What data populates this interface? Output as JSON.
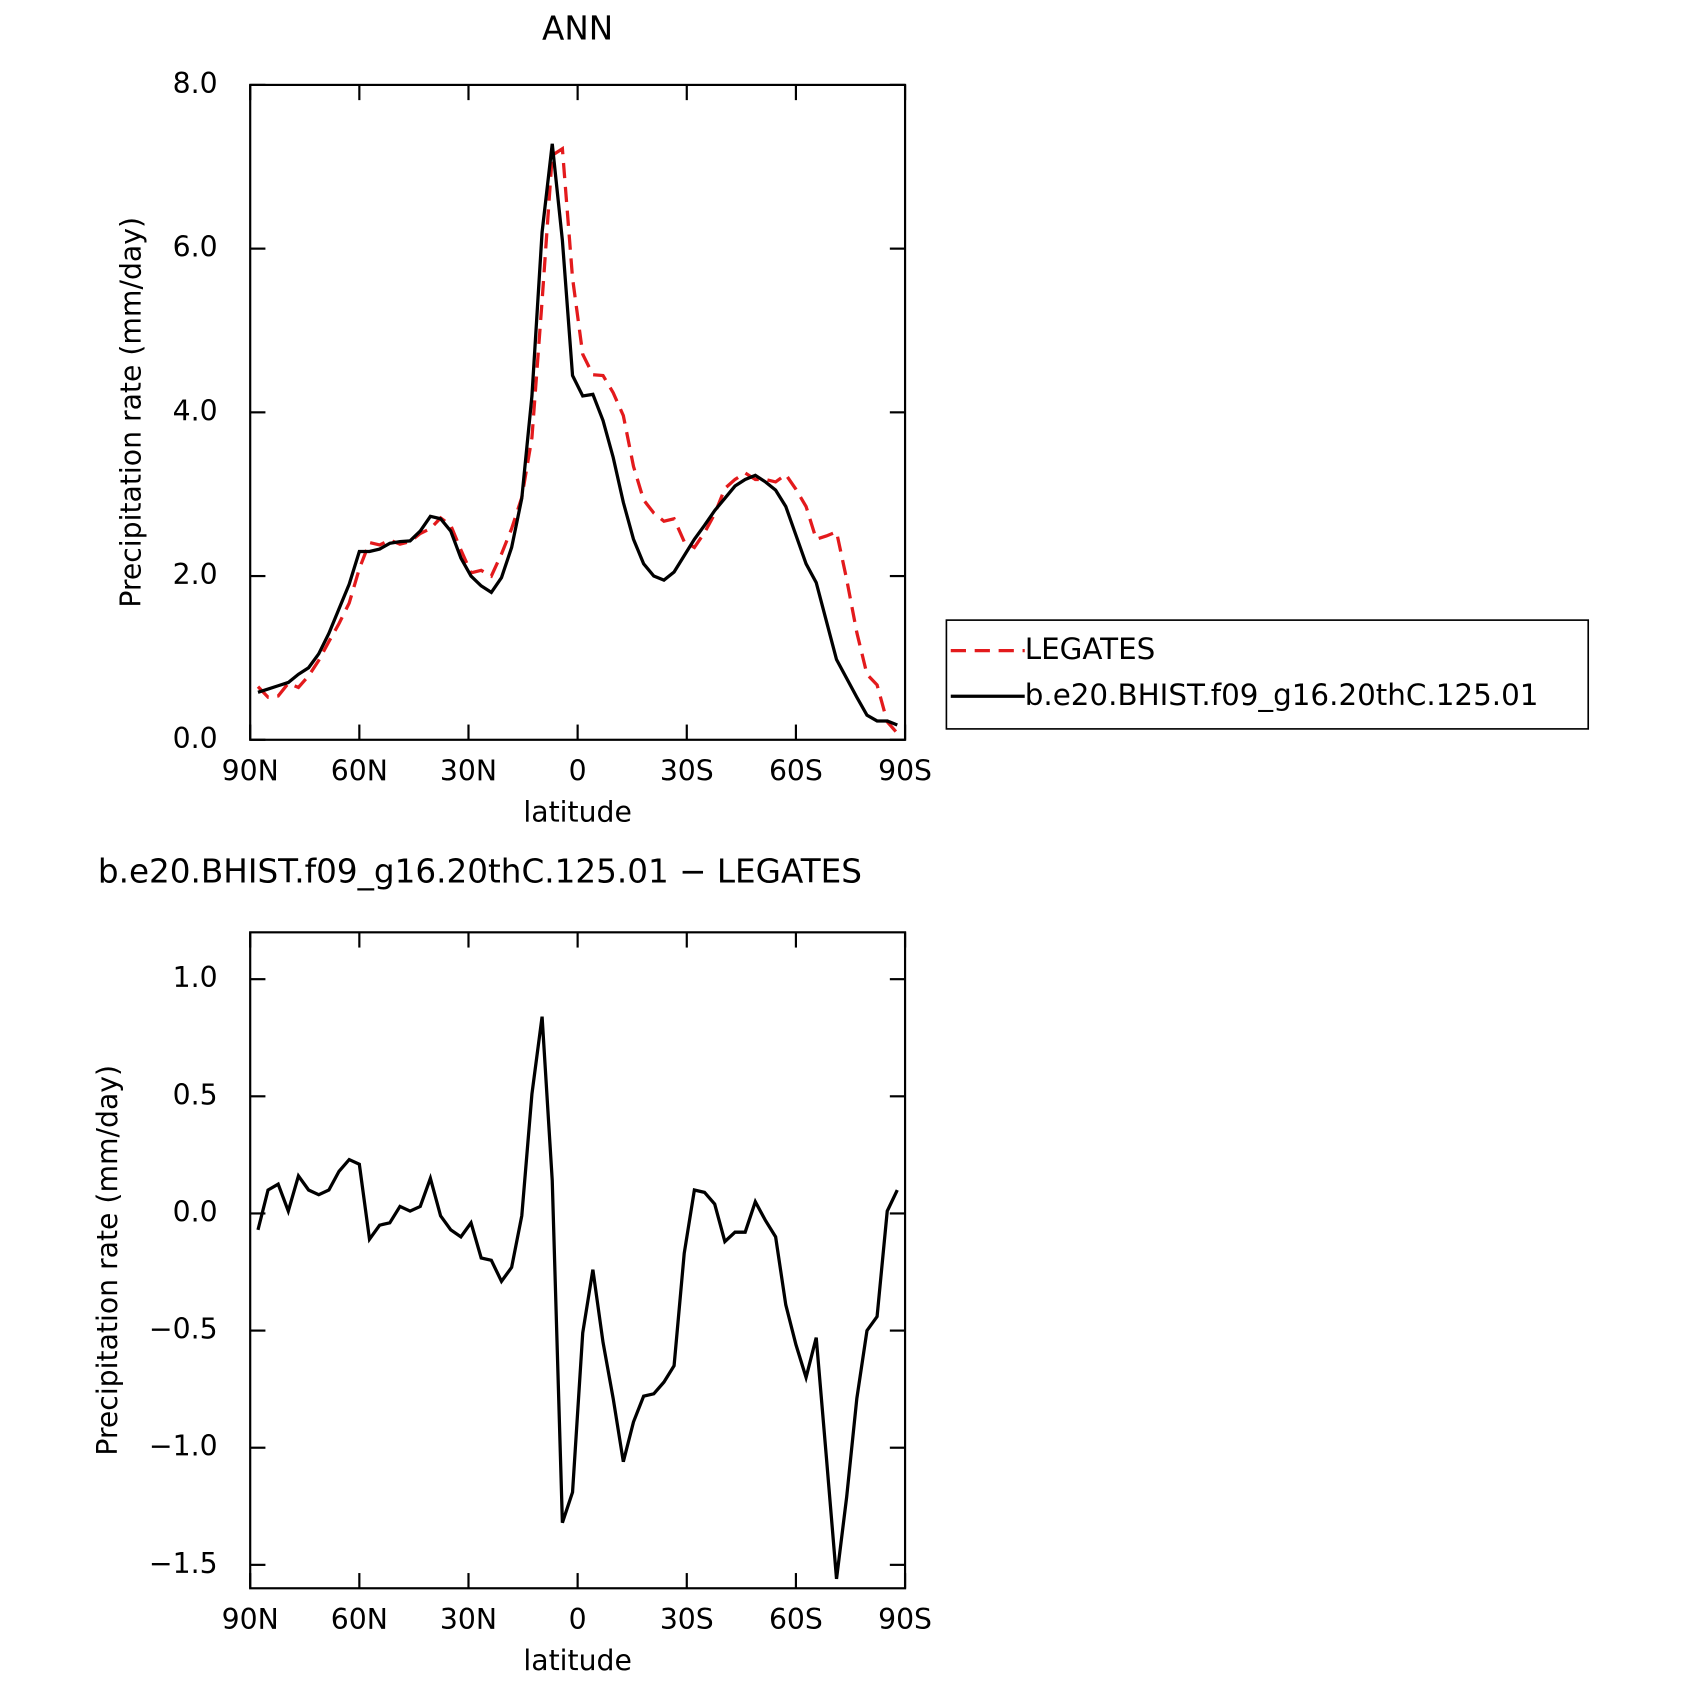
{
  "chart_data": [
    {
      "type": "line",
      "title": "ANN",
      "xlabel": "latitude",
      "ylabel": "Precipitation rate (mm/day)",
      "x": [
        87.86,
        85.1,
        82.31,
        79.53,
        76.74,
        73.95,
        71.16,
        68.37,
        65.58,
        62.79,
        60.0,
        57.21,
        54.42,
        51.63,
        48.84,
        46.05,
        43.26,
        40.47,
        37.67,
        34.88,
        32.09,
        29.3,
        26.51,
        23.72,
        20.93,
        18.14,
        15.35,
        12.56,
        9.77,
        6.98,
        4.19,
        1.4,
        -1.4,
        -4.19,
        -6.98,
        -9.77,
        -12.56,
        -15.35,
        -18.14,
        -20.93,
        -23.72,
        -26.51,
        -29.3,
        -32.09,
        -34.88,
        -37.67,
        -40.47,
        -43.26,
        -46.05,
        -48.84,
        -51.63,
        -54.42,
        -57.21,
        -60.0,
        -62.79,
        -65.58,
        -68.37,
        -71.16,
        -73.95,
        -76.74,
        -79.53,
        -82.31,
        -85.1,
        -87.86
      ],
      "xlim": [
        90,
        -90
      ],
      "xticks": [
        {
          "value": 90,
          "label": "90N"
        },
        {
          "value": 60,
          "label": "60N"
        },
        {
          "value": 30,
          "label": "30N"
        },
        0,
        {
          "value": -30,
          "label": "30S"
        },
        {
          "value": -60,
          "label": "60S"
        },
        {
          "value": -90,
          "label": "90S"
        }
      ],
      "ylim": [
        0,
        8
      ],
      "yticks": [
        {
          "value": 0,
          "label": "0.0"
        },
        {
          "value": 2,
          "label": "2.0"
        },
        {
          "value": 4,
          "label": "4.0"
        },
        {
          "value": 6,
          "label": "6.0"
        },
        {
          "value": 8,
          "label": "8.0"
        }
      ],
      "series": [
        {
          "name": "LEGATES",
          "color": "#e31a1c",
          "dash": true,
          "values": [
            0.65,
            0.52,
            0.535,
            0.69,
            0.64,
            0.78,
            0.97,
            1.2,
            1.42,
            1.67,
            2.09,
            2.41,
            2.38,
            2.44,
            2.39,
            2.42,
            2.52,
            2.58,
            2.71,
            2.62,
            2.32,
            2.04,
            2.07,
            2.0,
            2.27,
            2.58,
            2.96,
            3.69,
            5.36,
            7.14,
            7.22,
            5.64,
            4.71,
            4.46,
            4.45,
            4.24,
            3.96,
            3.34,
            2.93,
            2.77,
            2.67,
            2.7,
            2.42,
            2.35,
            2.53,
            2.76,
            3.07,
            3.18,
            3.26,
            3.18,
            3.18,
            3.15,
            3.24,
            3.06,
            2.85,
            2.45,
            2.49,
            2.54,
            1.96,
            1.31,
            0.8,
            0.67,
            0.22,
            0.08
          ]
        },
        {
          "name": "b.e20.BHIST.f09_g16.20thC.125.01",
          "color": "#000000",
          "dash": false,
          "values": [
            0.58,
            0.62,
            0.66,
            0.7,
            0.8,
            0.88,
            1.05,
            1.3,
            1.6,
            1.9,
            2.3,
            2.3,
            2.33,
            2.4,
            2.42,
            2.43,
            2.55,
            2.73,
            2.7,
            2.55,
            2.22,
            2.0,
            1.88,
            1.8,
            1.98,
            2.35,
            2.95,
            4.2,
            6.2,
            7.28,
            6.1,
            4.45,
            4.2,
            4.22,
            3.9,
            3.45,
            2.9,
            2.45,
            2.15,
            2.0,
            1.95,
            2.05,
            2.25,
            2.45,
            2.62,
            2.8,
            2.95,
            3.1,
            3.18,
            3.23,
            3.15,
            3.05,
            2.85,
            2.5,
            2.15,
            1.92,
            1.45,
            0.98,
            0.75,
            0.52,
            0.3,
            0.23,
            0.23,
            0.18
          ]
        }
      ]
    },
    {
      "type": "line",
      "title": "b.e20.BHIST.f09_g16.20thC.125.01 − LEGATES",
      "xlabel": "latitude",
      "ylabel": "Precipitation rate (mm/day)",
      "x": [
        87.86,
        85.1,
        82.31,
        79.53,
        76.74,
        73.95,
        71.16,
        68.37,
        65.58,
        62.79,
        60.0,
        57.21,
        54.42,
        51.63,
        48.84,
        46.05,
        43.26,
        40.47,
        37.67,
        34.88,
        32.09,
        29.3,
        26.51,
        23.72,
        20.93,
        18.14,
        15.35,
        12.56,
        9.77,
        6.98,
        4.19,
        1.4,
        -1.4,
        -4.19,
        -6.98,
        -9.77,
        -12.56,
        -15.35,
        -18.14,
        -20.93,
        -23.72,
        -26.51,
        -29.3,
        -32.09,
        -34.88,
        -37.67,
        -40.47,
        -43.26,
        -46.05,
        -48.84,
        -51.63,
        -54.42,
        -57.21,
        -60.0,
        -62.79,
        -65.58,
        -68.37,
        -71.16,
        -73.95,
        -76.74,
        -79.53,
        -82.31,
        -85.1,
        -87.86
      ],
      "xlim": [
        90,
        -90
      ],
      "xticks": [
        {
          "value": 90,
          "label": "90N"
        },
        {
          "value": 60,
          "label": "60N"
        },
        {
          "value": 30,
          "label": "30N"
        },
        0,
        {
          "value": -30,
          "label": "30S"
        },
        {
          "value": -60,
          "label": "60S"
        },
        {
          "value": -90,
          "label": "90S"
        }
      ],
      "ylim": [
        -1.6,
        1.2
      ],
      "yticks": [
        {
          "value": 1,
          "label": "1.0"
        },
        0.5,
        {
          "value": 0,
          "label": "0.0"
        },
        {
          "value": -0.5,
          "label": "−0.5"
        },
        {
          "value": -1,
          "label": "−1.0"
        },
        {
          "value": -1.5,
          "label": "−1.5"
        }
      ],
      "color": "#000000",
      "values": [
        -0.07,
        0.1,
        0.125,
        0.01,
        0.16,
        0.1,
        0.08,
        0.1,
        0.18,
        0.23,
        0.21,
        -0.11,
        -0.05,
        -0.04,
        0.03,
        0.01,
        0.03,
        0.15,
        -0.01,
        -0.07,
        -0.1,
        -0.04,
        -0.19,
        -0.2,
        -0.29,
        -0.23,
        -0.01,
        0.51,
        0.84,
        0.14,
        -1.32,
        -1.19,
        -0.51,
        -0.24,
        -0.55,
        -0.79,
        -1.06,
        -0.89,
        -0.78,
        -0.77,
        -0.72,
        -0.65,
        -0.17,
        0.1,
        0.09,
        0.04,
        -0.12,
        -0.08,
        -0.08,
        0.05,
        -0.03,
        -0.1,
        -0.39,
        -0.56,
        -0.7,
        -0.53,
        -1.04,
        -1.56,
        -1.21,
        -0.79,
        -0.5,
        -0.44,
        0.01,
        0.1
      ]
    }
  ]
}
